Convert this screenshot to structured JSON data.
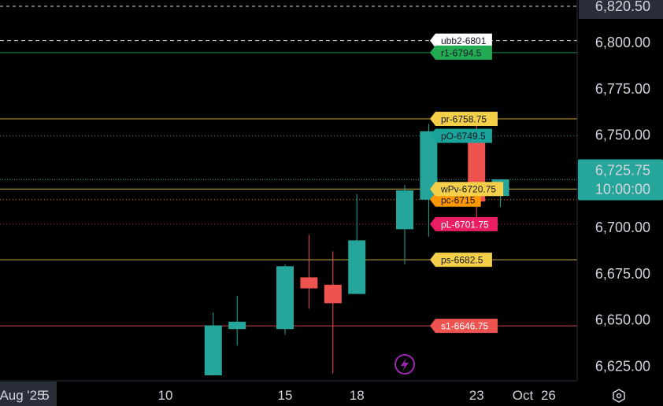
{
  "chart_data": {
    "type": "candlestick",
    "y_axis": {
      "ticks": [
        "6,625.00",
        "6,650.00",
        "6,675.00",
        "6,700.00",
        "6,725.00",
        "6,750.00",
        "6,775.00",
        "6,800.00"
      ],
      "tick_values": [
        6625,
        6650,
        6675,
        6700,
        6725,
        6750,
        6775,
        6800
      ],
      "top_label": "6,820.50",
      "top_value": 6820.5,
      "ylim": [
        6611,
        6822
      ]
    },
    "x_axis": {
      "ticks": [
        {
          "label": "Aug '25",
          "day": 1
        },
        {
          "label": "5",
          "day": 5
        },
        {
          "label": "10",
          "day": 10
        },
        {
          "label": "15",
          "day": 15
        },
        {
          "label": "18",
          "day": 18
        },
        {
          "label": "23",
          "day": 23
        },
        {
          "label": "26",
          "day": 26
        },
        {
          "label": "Oct",
          "day": 31
        }
      ]
    },
    "candles": [
      {
        "day": 12,
        "open": 6620,
        "high": 6654,
        "low": 6620,
        "close": 6647
      },
      {
        "day": 13,
        "open": 6645,
        "high": 6663,
        "low": 6636,
        "close": 6649
      },
      {
        "day": 15,
        "open": 6645,
        "high": 6680,
        "low": 6642,
        "close": 6679
      },
      {
        "day": 16,
        "open": 6673,
        "high": 6696,
        "low": 6656,
        "close": 6667
      },
      {
        "day": 17,
        "open": 6669,
        "high": 6687,
        "low": 6621,
        "close": 6659
      },
      {
        "day": 18,
        "open": 6664,
        "high": 6718,
        "low": 6664,
        "close": 6693
      },
      {
        "day": 20,
        "open": 6699,
        "high": 6723,
        "low": 6680,
        "close": 6720
      },
      {
        "day": 21,
        "open": 6715,
        "high": 6756,
        "low": 6695,
        "close": 6752
      },
      {
        "day": 23,
        "open": 6749,
        "high": 6756,
        "low": 6702,
        "close": 6714
      },
      {
        "day": 24,
        "open": 6717,
        "high": 6726,
        "low": 6711,
        "close": 6726
      }
    ],
    "colors": {
      "up": "#26a69a",
      "down": "#ef5350",
      "background": "#000000"
    },
    "levels": [
      {
        "label": "ubb2-6801",
        "value": 6801,
        "color": "#ffffff",
        "text_color": "#131722",
        "line": "dashed"
      },
      {
        "label": "r1-6794.5",
        "value": 6794.5,
        "color": "#22ab53",
        "text_color": "#131722",
        "line": "solid"
      },
      {
        "label": "pr-6758.75",
        "value": 6758.75,
        "color": "#f4cf49",
        "text_color": "#131722",
        "line": "solid"
      },
      {
        "label": "pO-6749.5",
        "value": 6749.5,
        "color": "#1aa39a",
        "text_color": "#131722",
        "line": "dotted"
      },
      {
        "label": "pc-6715",
        "value": 6715,
        "color": "#ff9800",
        "text_color": "#131722",
        "line": "dotted"
      },
      {
        "label": "wPv-6720.75",
        "value": 6720.75,
        "color": "#f4cf49",
        "text_color": "#131722",
        "line": "solid"
      },
      {
        "label": "pL-6701.75",
        "value": 6701.75,
        "color": "#e91e63",
        "text_color": "#ffffff",
        "line": "dotted"
      },
      {
        "label": "ps-6682.5",
        "value": 6682.5,
        "color": "#f4cf49",
        "text_color": "#131722",
        "line": "solid"
      },
      {
        "label": "s1-6646.75",
        "value": 6646.75,
        "color": "#ef5350",
        "text_color": "#ffffff",
        "line": "solid"
      }
    ],
    "last_price": {
      "label": "6,725.75",
      "value": 6725.75,
      "countdown": "10:00:00",
      "color": "#26a69a"
    },
    "top_dashed_value": 6820.5
  },
  "ui": {
    "lightning_icon": "lightning-icon",
    "settings_icon": "gear-icon"
  }
}
